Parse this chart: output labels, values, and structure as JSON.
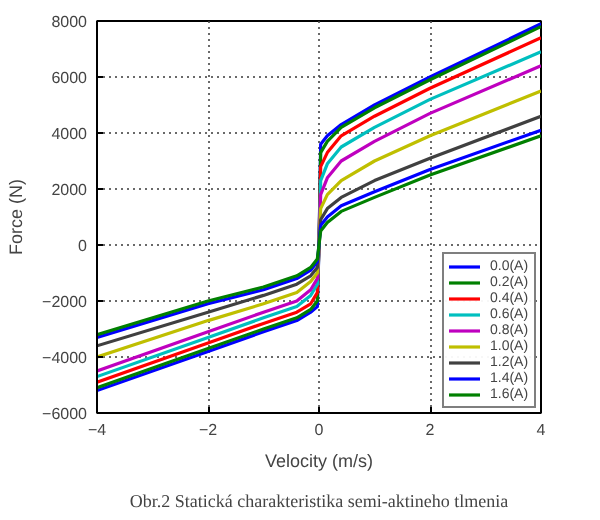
{
  "chart_data": {
    "type": "line",
    "xlabel": "Velocity (m/s)",
    "ylabel": "Force (N)",
    "annotations": [
      "Obr.2 Statická charakteristika semi-aktineho tlmenia"
    ],
    "x": [
      -4,
      -2,
      -1,
      -0.4,
      -0.15,
      -0.03,
      0,
      0.03,
      0.15,
      0.4,
      1,
      2,
      4
    ],
    "series": [
      {
        "name": "0.0(A)",
        "color": "#0000ff",
        "values": [
          -5200,
          -3800,
          -3100,
          -2700,
          -2400,
          -2200,
          0,
          3600,
          3900,
          4300,
          5000,
          6000,
          7900
        ]
      },
      {
        "name": "0.2(A)",
        "color": "#008000",
        "values": [
          -5100,
          -3700,
          -3000,
          -2600,
          -2300,
          -2000,
          0,
          3300,
          3700,
          4200,
          4900,
          5900,
          7800
        ]
      },
      {
        "name": "0.4(A)",
        "color": "#ff0000",
        "values": [
          -4900,
          -3500,
          -2800,
          -2400,
          -2100,
          -1700,
          0,
          2800,
          3300,
          3900,
          4600,
          5600,
          7400
        ]
      },
      {
        "name": "0.6(A)",
        "color": "#00bfbf",
        "values": [
          -4700,
          -3300,
          -2600,
          -2200,
          -1800,
          -1400,
          0,
          2300,
          2900,
          3500,
          4200,
          5200,
          6900
        ]
      },
      {
        "name": "0.8(A)",
        "color": "#bf00bf",
        "values": [
          -4500,
          -3100,
          -2400,
          -2000,
          -1600,
          -1200,
          0,
          1800,
          2400,
          3000,
          3700,
          4700,
          6400
        ]
      },
      {
        "name": "1.0(A)",
        "color": "#bfbf00",
        "values": [
          -4000,
          -2700,
          -2100,
          -1700,
          -1300,
          -1000,
          0,
          1300,
          1800,
          2300,
          3000,
          3900,
          5500
        ]
      },
      {
        "name": "1.2(A)",
        "color": "#404040",
        "values": [
          -3600,
          -2400,
          -1800,
          -1400,
          -1100,
          -800,
          0,
          900,
          1300,
          1700,
          2300,
          3100,
          4600
        ]
      },
      {
        "name": "1.4(A)",
        "color": "#0000ff",
        "values": [
          -3300,
          -2100,
          -1600,
          -1200,
          -900,
          -600,
          0,
          700,
          1000,
          1400,
          1900,
          2700,
          4100
        ]
      },
      {
        "name": "1.6(A)",
        "color": "#008000",
        "values": [
          -3200,
          -2000,
          -1500,
          -1100,
          -800,
          -500,
          0,
          500,
          800,
          1200,
          1700,
          2500,
          3900
        ]
      }
    ],
    "xlim": [
      -4,
      4
    ],
    "ylim": [
      -6000,
      8000
    ],
    "xticks": [
      -4,
      -2,
      0,
      2,
      4
    ],
    "yticks": [
      -6000,
      -4000,
      -2000,
      0,
      2000,
      4000,
      6000,
      8000
    ],
    "grid": true,
    "legend": "bottom right",
    "line_style": "solid"
  }
}
